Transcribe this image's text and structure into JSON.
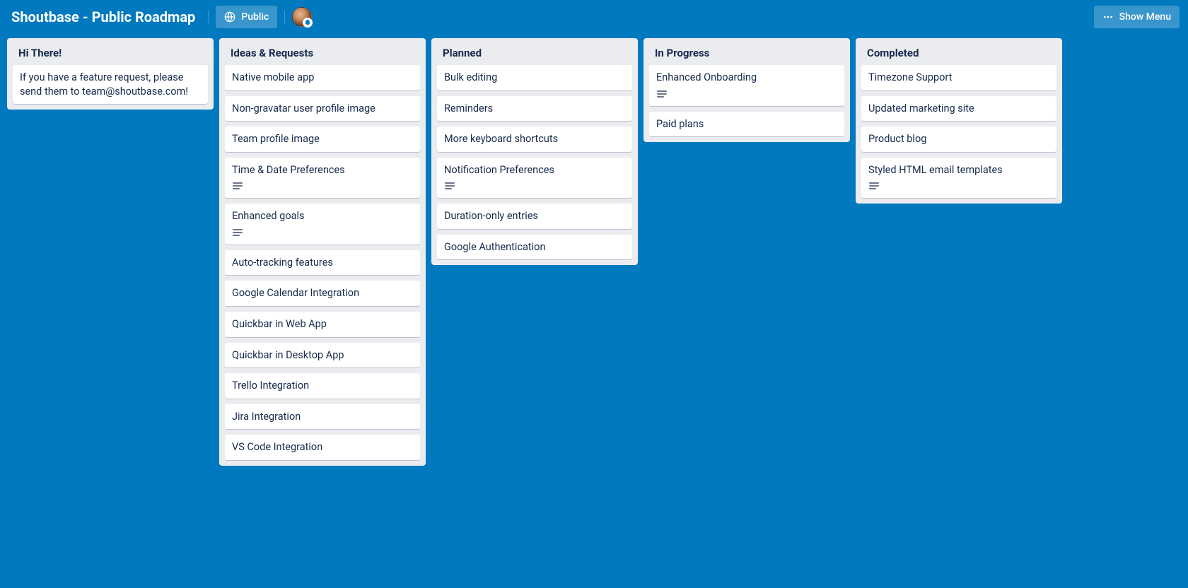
{
  "colors": {
    "board_bg": "#0079bf",
    "list_bg": "#ebecf0",
    "card_bg": "#ffffff",
    "text_dark": "#172b4d",
    "text_muted": "#6b778c",
    "header_btn_bg": "rgba(255,255,255,0.22)"
  },
  "header": {
    "board_title": "Shoutbase - Public Roadmap",
    "visibility_label": "Public",
    "show_menu_label": "Show Menu"
  },
  "lists": [
    {
      "title": "Hi There!",
      "cards": [
        {
          "text": "If you have a feature request, please send them to team@shoutbase.com!",
          "has_description": false
        }
      ]
    },
    {
      "title": "Ideas & Requests",
      "cards": [
        {
          "text": "Native mobile app",
          "has_description": false
        },
        {
          "text": "Non-gravatar user profile image",
          "has_description": false
        },
        {
          "text": "Team profile image",
          "has_description": false
        },
        {
          "text": "Time & Date Preferences",
          "has_description": true
        },
        {
          "text": "Enhanced goals",
          "has_description": true
        },
        {
          "text": "Auto-tracking features",
          "has_description": false
        },
        {
          "text": "Google Calendar Integration",
          "has_description": false
        },
        {
          "text": "Quickbar in Web App",
          "has_description": false
        },
        {
          "text": "Quickbar in Desktop App",
          "has_description": false
        },
        {
          "text": "Trello Integration",
          "has_description": false
        },
        {
          "text": "Jira Integration",
          "has_description": false
        },
        {
          "text": "VS Code Integration",
          "has_description": false
        }
      ]
    },
    {
      "title": "Planned",
      "cards": [
        {
          "text": "Bulk editing",
          "has_description": false
        },
        {
          "text": "Reminders",
          "has_description": false
        },
        {
          "text": "More keyboard shortcuts",
          "has_description": false
        },
        {
          "text": "Notification Preferences",
          "has_description": true
        },
        {
          "text": "Duration-only entries",
          "has_description": false
        },
        {
          "text": "Google Authentication",
          "has_description": false
        }
      ]
    },
    {
      "title": "In Progress",
      "cards": [
        {
          "text": "Enhanced Onboarding",
          "has_description": true
        },
        {
          "text": "Paid plans",
          "has_description": false
        }
      ]
    },
    {
      "title": "Completed",
      "cards": [
        {
          "text": "Timezone Support",
          "has_description": false
        },
        {
          "text": "Updated marketing site",
          "has_description": false
        },
        {
          "text": "Product blog",
          "has_description": false
        },
        {
          "text": "Styled HTML email templates",
          "has_description": true
        }
      ]
    }
  ]
}
